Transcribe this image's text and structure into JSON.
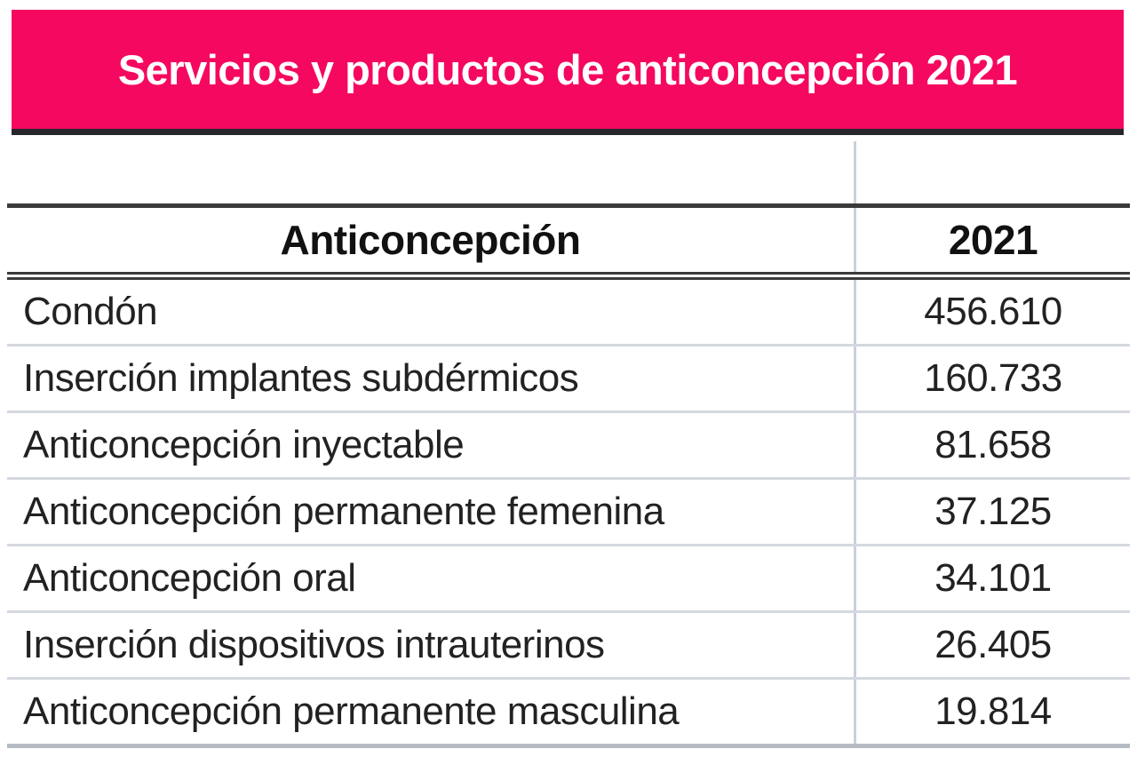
{
  "banner": {
    "title": "Servicios y productos de anticoncepción 2021",
    "bg_color": "#f5085f",
    "text_color": "#ffffff",
    "border_color": "#26262b"
  },
  "table": {
    "columns": [
      "Anticoncepción",
      "2021"
    ],
    "rows": [
      {
        "label": "Condón",
        "value": "456.610"
      },
      {
        "label": "Inserción implantes subdérmicos",
        "value": "160.733"
      },
      {
        "label": "Anticoncepción inyectable",
        "value": "81.658"
      },
      {
        "label": "Anticoncepción permanente femenina",
        "value": "37.125"
      },
      {
        "label": "Anticoncepción oral",
        "value": "34.101"
      },
      {
        "label": "Inserción dispositivos intrauterinos",
        "value": "26.405"
      },
      {
        "label": "Anticoncepción permanente masculina",
        "value": "19.814"
      }
    ]
  },
  "chart_data": {
    "type": "table",
    "title": "Servicios y productos de anticoncepción 2021",
    "columns": [
      "Anticoncepción",
      "2021"
    ],
    "categories": [
      "Condón",
      "Inserción implantes subdérmicos",
      "Anticoncepción inyectable",
      "Anticoncepción permanente femenina",
      "Anticoncepción oral",
      "Inserción dispositivos intrauterinos",
      "Anticoncepción permanente masculina"
    ],
    "values": [
      456610,
      160733,
      81658,
      37125,
      34101,
      26405,
      19814
    ],
    "values_display": [
      "456.610",
      "160.733",
      "81.658",
      "37.125",
      "34.101",
      "26.405",
      "19.814"
    ],
    "year": "2021"
  }
}
